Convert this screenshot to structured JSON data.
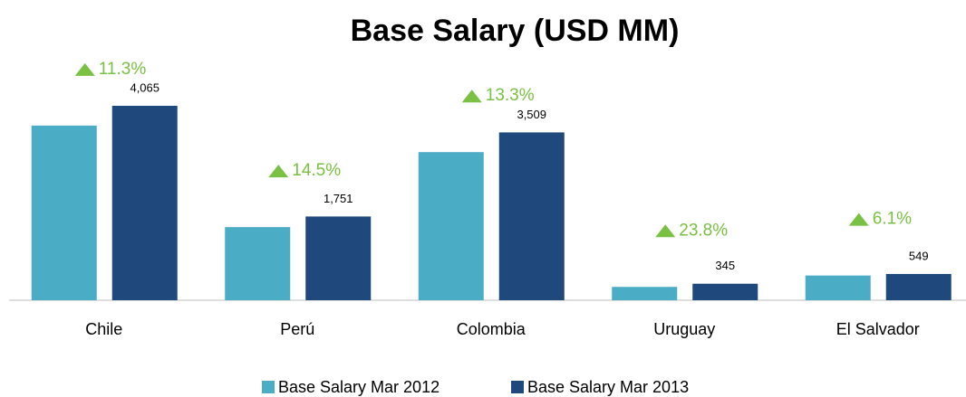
{
  "chart_data": {
    "type": "bar",
    "title": "Base Salary (USD MM)",
    "categories": [
      "Chile",
      "Perú",
      "Colombia",
      "Uruguay",
      "El Salvador"
    ],
    "series": [
      {
        "name": "Base Salary Mar 2012",
        "color": "#4bacc6",
        "values": [
          3652,
          1529,
          3097,
          279,
          517
        ]
      },
      {
        "name": "Base Salary Mar 2013",
        "color": "#1f497d",
        "values": [
          4065,
          1751,
          3509,
          345,
          549
        ],
        "value_labels": [
          "4,065",
          "1,751",
          "3,509",
          "345",
          "549"
        ]
      }
    ],
    "annotations": [
      "11.3%",
      "14.5%",
      "13.3%",
      "23.8%",
      "6.1%"
    ],
    "annotation_color": "#7ac143",
    "ylim": [
      0,
      4500
    ],
    "legend": "bottom"
  }
}
